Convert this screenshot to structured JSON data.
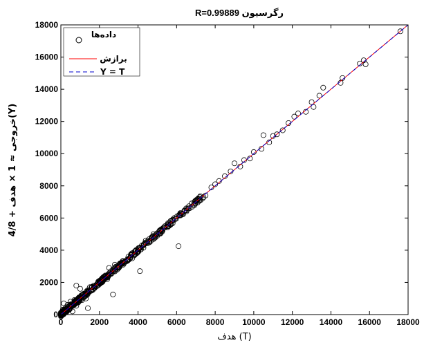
{
  "chart_data": {
    "type": "scatter",
    "title": "R=0.99889  رگرسیون",
    "xlabel": "هدف (T)",
    "ylabel": "خروجی ≈ 1 × هدف + 4/8(Y)",
    "xlim": [
      0,
      18000
    ],
    "ylim": [
      0,
      18000
    ],
    "xticks": [
      "0",
      "2000",
      "4000",
      "6000",
      "8000",
      "10000",
      "12000",
      "14000",
      "16000",
      "18000"
    ],
    "yticks": [
      "0",
      "2000",
      "4000",
      "6000",
      "8000",
      "10000",
      "12000",
      "14000",
      "16000",
      "18000"
    ],
    "grid": false,
    "legend_position": "top-left",
    "legend": [
      {
        "label": "داده‌ها",
        "style": "marker-circle"
      },
      {
        "label": "برازش",
        "style": "solid",
        "color": "#ff0000"
      },
      {
        "label": "Y = T",
        "style": "dashed",
        "color": "#0000cc"
      }
    ],
    "fit_line": {
      "slope": 1,
      "intercept": 4.8,
      "color": "#ff0000"
    },
    "identity_line": {
      "slope": 1,
      "intercept": 0,
      "color": "#0000cc"
    },
    "series": [
      {
        "name": "داده‌ها",
        "points": [
          [
            100,
            300
          ],
          [
            150,
            700
          ],
          [
            200,
            100
          ],
          [
            250,
            450
          ],
          [
            300,
            250
          ],
          [
            350,
            600
          ],
          [
            450,
            350
          ],
          [
            500,
            800
          ],
          [
            600,
            200
          ],
          [
            700,
            900
          ],
          [
            800,
            550
          ],
          [
            900,
            750
          ],
          [
            1000,
            1100
          ],
          [
            1100,
            900
          ],
          [
            1200,
            1300
          ],
          [
            1300,
            1000
          ],
          [
            1400,
            400
          ],
          [
            1500,
            1700
          ],
          [
            800,
            1800
          ],
          [
            1000,
            1600
          ],
          [
            2000,
            2100
          ],
          [
            2400,
            2200
          ],
          [
            2500,
            2900
          ],
          [
            2800,
            3100
          ],
          [
            2700,
            1250
          ],
          [
            3000,
            2900
          ],
          [
            3200,
            3300
          ],
          [
            3500,
            3600
          ],
          [
            3700,
            3500
          ],
          [
            3900,
            4000
          ],
          [
            4100,
            2700
          ],
          [
            4200,
            4300
          ],
          [
            4400,
            4600
          ],
          [
            4600,
            4500
          ],
          [
            4800,
            5000
          ],
          [
            5000,
            4900
          ],
          [
            5200,
            5300
          ],
          [
            5400,
            5500
          ],
          [
            5600,
            5500
          ],
          [
            5800,
            5900
          ],
          [
            6100,
            4250
          ],
          [
            6200,
            6300
          ],
          [
            6500,
            6600
          ],
          [
            6800,
            6700
          ],
          [
            7000,
            7100
          ],
          [
            7200,
            7300
          ],
          [
            7500,
            7400
          ],
          [
            7800,
            7900
          ],
          [
            8000,
            8100
          ],
          [
            8200,
            8300
          ],
          [
            8500,
            8600
          ],
          [
            8800,
            8900
          ],
          [
            9000,
            9400
          ],
          [
            9300,
            9200
          ],
          [
            9500,
            9600
          ],
          [
            9800,
            9700
          ],
          [
            10000,
            10100
          ],
          [
            10400,
            10300
          ],
          [
            10500,
            11150
          ],
          [
            10800,
            10700
          ],
          [
            11000,
            11100
          ],
          [
            11200,
            11200
          ],
          [
            11500,
            11450
          ],
          [
            11800,
            11900
          ],
          [
            12100,
            12300
          ],
          [
            12300,
            12500
          ],
          [
            12700,
            12600
          ],
          [
            13000,
            13200
          ],
          [
            13100,
            12900
          ],
          [
            13400,
            13600
          ],
          [
            13600,
            14100
          ],
          [
            14500,
            14400
          ],
          [
            14600,
            14700
          ],
          [
            15500,
            15600
          ],
          [
            15700,
            15800
          ],
          [
            15800,
            15550
          ],
          [
            17600,
            17600
          ]
        ]
      }
    ]
  }
}
